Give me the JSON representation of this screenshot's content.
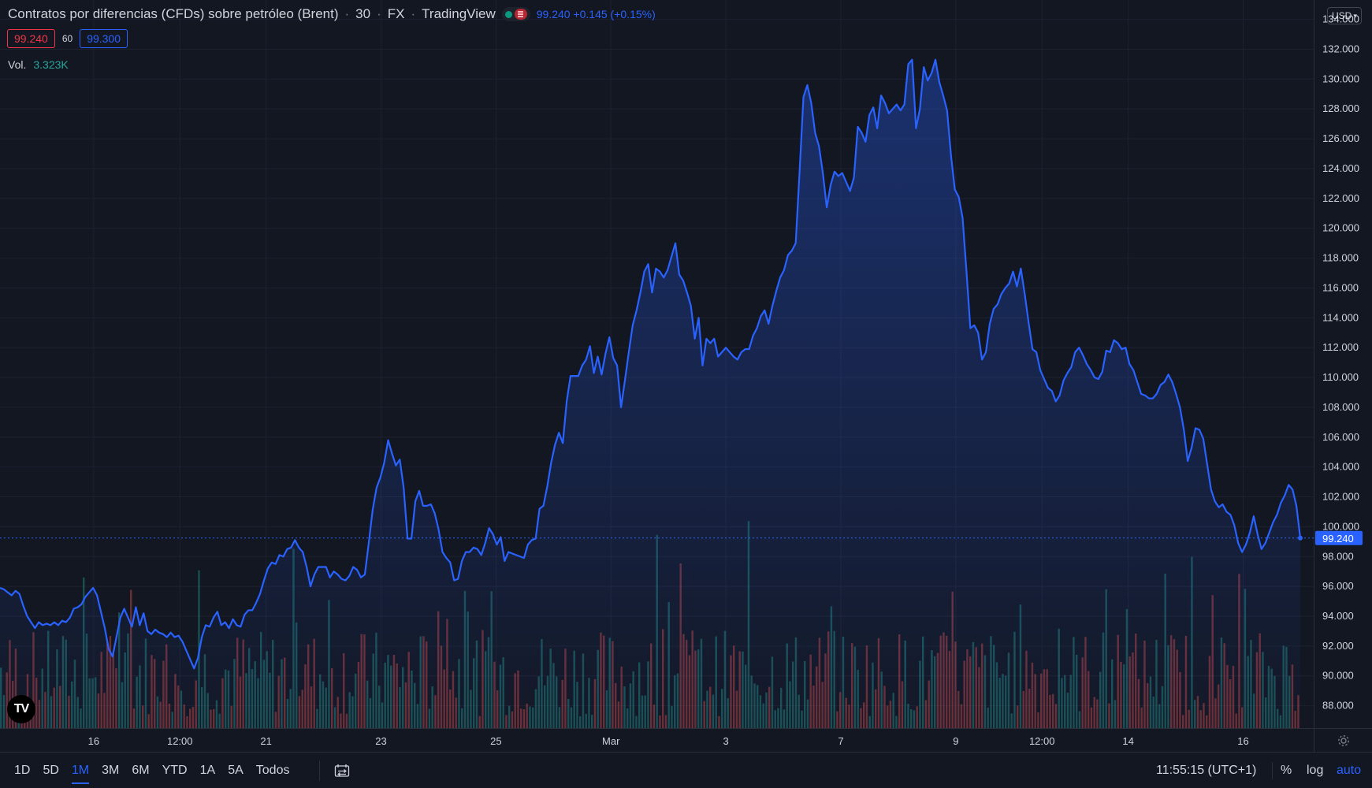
{
  "legend": {
    "symbol_name": "Contratos por diferencias (CFDs) sobre petróleo (Brent)",
    "interval": "30",
    "exchange": "FX",
    "provider": "TradingView",
    "last_price": "99.240",
    "change": "+0.145 (+0.15%)"
  },
  "quote": {
    "bid": "99.240",
    "spread": "60",
    "ask": "99.300"
  },
  "volume": {
    "label": "Vol.",
    "value": "3.323K"
  },
  "currency": {
    "label": "USD"
  },
  "price_axis": {
    "ticks": [
      "134.000",
      "132.000",
      "130.000",
      "128.000",
      "126.000",
      "124.000",
      "122.000",
      "120.000",
      "118.000",
      "116.000",
      "114.000",
      "112.000",
      "110.000",
      "108.000",
      "106.000",
      "104.000",
      "102.000",
      "100.000",
      "98.000",
      "96.000",
      "94.000",
      "92.000",
      "90.000",
      "88.000"
    ],
    "last_label": "99.240"
  },
  "time_axis": {
    "ticks": [
      {
        "label": "16",
        "x_index": 2
      },
      {
        "label": "12:00",
        "x_index": 3.5
      },
      {
        "label": "21",
        "x_index": 5
      },
      {
        "label": "23",
        "x_index": 7
      },
      {
        "label": "25",
        "x_index": 9
      },
      {
        "label": "Mar",
        "x_index": 11
      },
      {
        "label": "3",
        "x_index": 13
      },
      {
        "label": "7",
        "x_index": 15
      },
      {
        "label": "9",
        "x_index": 17
      },
      {
        "label": "12:00",
        "x_index": 18.5
      },
      {
        "label": "14",
        "x_index": 20
      },
      {
        "label": "16",
        "x_index": 22
      }
    ]
  },
  "bottom_bar": {
    "ranges": [
      "1D",
      "5D",
      "1M",
      "3M",
      "6M",
      "YTD",
      "1A",
      "5A",
      "Todos"
    ],
    "active_range": "1M",
    "clock": "11:55:15 (UTC+1)",
    "percent_label": "%",
    "log_label": "log",
    "auto_label": "auto"
  },
  "colors": {
    "background": "#131722",
    "line": "#2962ff",
    "grid": "#1e2230",
    "volume_up": "#26a69a",
    "volume_down": "#ef5350",
    "bid": "#f23645",
    "ask": "#2962ff"
  },
  "chart_data": {
    "type": "area",
    "title": "Contratos por diferencias (CFDs) sobre petróleo (Brent)",
    "xlabel": "",
    "ylabel": "",
    "ylim": [
      86.5,
      135.3
    ],
    "y_scale": "linear",
    "grid": true,
    "last_value": 99.24,
    "series": [
      {
        "values": [
          95.9,
          95.8,
          95.6,
          95.4,
          95.7,
          95.5,
          94.7,
          94.0,
          93.6,
          93.2,
          93.6,
          93.4,
          93.5,
          93.4,
          93.6,
          93.4,
          93.7,
          93.6,
          93.9,
          94.5,
          94.6,
          94.8,
          95.3,
          95.6,
          95.9,
          95.4,
          94.3,
          93.2,
          91.8,
          91.3,
          92.6,
          93.9,
          94.5,
          93.9,
          93.3,
          94.6,
          93.4,
          94.2,
          93.0,
          92.8,
          93.1,
          92.9,
          92.8,
          92.6,
          92.9,
          92.6,
          92.7,
          92.3,
          91.7,
          91.1,
          90.5,
          91.2,
          92.6,
          93.4,
          93.3,
          93.9,
          94.3,
          93.4,
          93.6,
          93.2,
          93.8,
          93.4,
          93.3,
          94.1,
          94.4,
          94.4,
          94.9,
          95.5,
          96.4,
          97.2,
          97.6,
          97.5,
          98.1,
          98.0,
          98.5,
          98.6,
          99.1,
          98.6,
          98.3,
          97.3,
          96.0,
          96.8,
          97.3,
          97.3,
          97.3,
          96.6,
          97.0,
          96.8,
          96.5,
          96.4,
          96.7,
          97.3,
          97.1,
          96.6,
          96.8,
          98.9,
          101.1,
          102.6,
          103.3,
          104.3,
          105.8,
          104.9,
          104.1,
          104.5,
          102.6,
          99.2,
          99.2,
          101.7,
          102.4,
          101.4,
          101.4,
          101.5,
          100.9,
          99.8,
          98.3,
          97.9,
          97.6,
          96.4,
          96.5,
          97.7,
          98.3,
          98.3,
          98.6,
          98.5,
          98.1,
          98.9,
          99.9,
          99.5,
          98.8,
          99.3,
          97.7,
          98.3,
          98.2,
          98.1,
          98.0,
          97.9,
          98.8,
          99.1,
          99.2,
          101.2,
          101.4,
          102.7,
          104.3,
          105.5,
          106.3,
          105.6,
          108.4,
          110.1,
          110.1,
          110.1,
          110.8,
          111.2,
          112.1,
          110.3,
          111.4,
          110.2,
          111.6,
          112.7,
          111.3,
          110.8,
          108.0,
          109.8,
          111.7,
          113.5,
          114.5,
          115.7,
          117.1,
          117.6,
          115.7,
          117.3,
          117.1,
          116.7,
          117.2,
          118.1,
          119.0,
          116.9,
          116.5,
          115.7,
          114.8,
          112.6,
          114.0,
          110.8,
          112.6,
          112.3,
          112.6,
          111.4,
          111.7,
          112.0,
          111.7,
          111.4,
          111.2,
          111.7,
          111.9,
          111.9,
          112.8,
          113.3,
          114.1,
          114.5,
          113.6,
          114.8,
          115.8,
          116.7,
          117.2,
          118.2,
          118.5,
          119.0,
          123.8,
          128.8,
          129.6,
          128.4,
          126.4,
          125.5,
          123.7,
          121.4,
          122.9,
          123.8,
          123.5,
          123.7,
          123.1,
          122.5,
          123.4,
          126.8,
          126.4,
          125.8,
          127.6,
          128.1,
          126.7,
          128.9,
          128.4,
          127.7,
          128.0,
          128.3,
          127.9,
          128.3,
          131.0,
          131.3,
          126.7,
          128.0,
          130.8,
          129.9,
          130.4,
          131.3,
          129.8,
          128.9,
          127.9,
          124.9,
          122.6,
          122.1,
          120.7,
          117.1,
          113.3,
          113.5,
          113.0,
          111.2,
          111.7,
          113.6,
          114.6,
          114.9,
          115.6,
          116.0,
          116.3,
          117.1,
          116.1,
          117.3,
          115.6,
          113.7,
          111.9,
          111.7,
          110.5,
          109.9,
          109.3,
          109.1,
          108.4,
          108.8,
          109.8,
          110.3,
          110.7,
          111.7,
          112.0,
          111.5,
          110.9,
          110.5,
          110.0,
          109.9,
          110.4,
          111.8,
          111.7,
          112.5,
          112.3,
          111.9,
          112.0,
          110.9,
          110.5,
          109.7,
          108.9,
          108.8,
          108.6,
          108.6,
          108.9,
          109.5,
          109.7,
          110.2,
          109.7,
          108.9,
          108.0,
          106.5,
          104.4,
          105.3,
          106.6,
          106.5,
          105.9,
          104.2,
          102.5,
          101.7,
          101.3,
          101.5,
          101.0,
          100.8,
          100.1,
          98.9,
          98.3,
          98.8,
          99.6,
          100.7,
          99.5,
          98.5,
          98.9,
          99.6,
          100.3,
          100.8,
          101.6,
          102.1,
          102.8,
          102.5,
          101.4,
          99.24
        ]
      }
    ]
  }
}
